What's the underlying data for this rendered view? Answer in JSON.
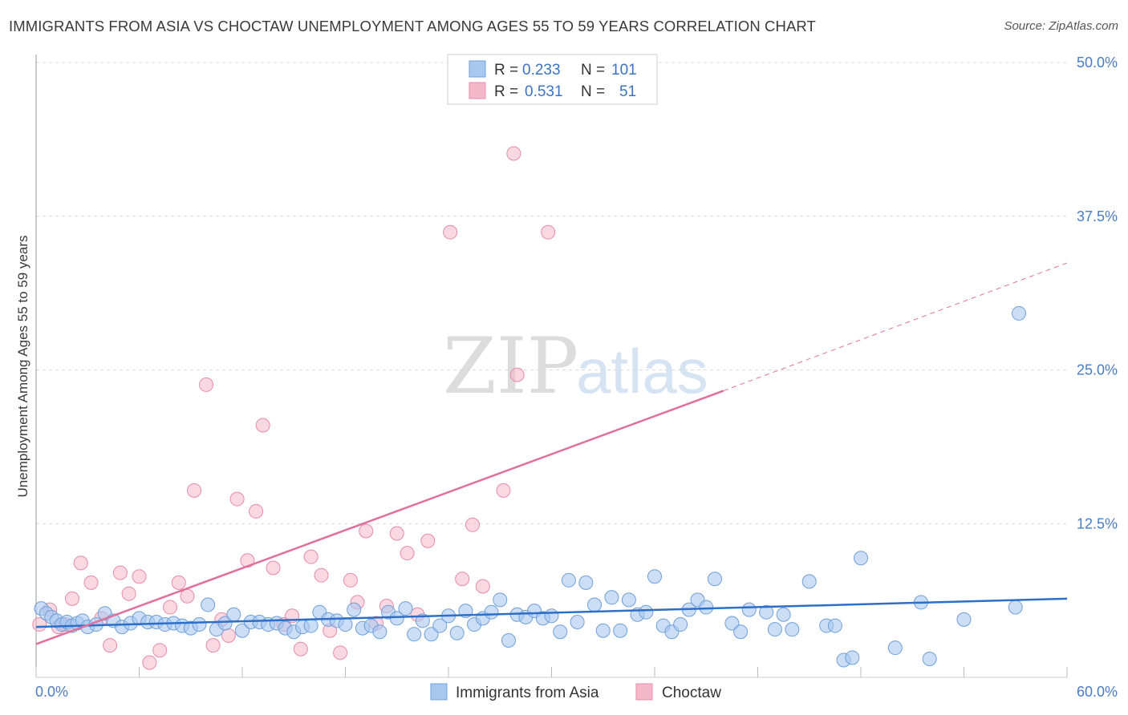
{
  "title": "IMMIGRANTS FROM ASIA VS CHOCTAW UNEMPLOYMENT AMONG AGES 55 TO 59 YEARS CORRELATION CHART",
  "source": "Source: ZipAtlas.com",
  "colors": {
    "series1_fill": "#a8c8f0",
    "series1_stroke": "#6f9fd8",
    "series1_line": "#2d6fc8",
    "series2_fill": "#f5b8cb",
    "series2_stroke": "#e88aa8",
    "series2_line": "#e0709a",
    "tick": "#4a7cc4",
    "grid": "#d9d9d9"
  },
  "legend": {
    "rows": [
      {
        "r_label": "R =",
        "r_value": "0.233",
        "n_label": "N =",
        "n_value": "101"
      },
      {
        "r_label": "R =",
        "r_value": "0.531",
        "n_label": "N =",
        "n_value": "51"
      }
    ]
  },
  "watermark": {
    "part1": "ZIP",
    "part2": "atlas"
  },
  "chart_data": {
    "type": "scatter",
    "xlabel": "",
    "ylabel": "Unemployment Among Ages 55 to 59 years",
    "xlim": [
      0,
      60
    ],
    "ylim": [
      0,
      50
    ],
    "x_tick_labels": [
      "0.0%",
      "60.0%"
    ],
    "y_ticks": [
      12.5,
      25.0,
      37.5,
      50.0
    ],
    "y_tick_labels": [
      "12.5%",
      "25.0%",
      "37.5%",
      "50.0%"
    ],
    "grid": true,
    "legend_position": "top-center",
    "series": [
      {
        "name": "Immigrants from Asia",
        "r": 0.233,
        "n": 101,
        "trend": {
          "x0": 0,
          "y0": 4.1,
          "x1": 60,
          "y1": 6.4
        },
        "points": [
          [
            0.3,
            5.6
          ],
          [
            0.6,
            5.2
          ],
          [
            0.9,
            4.9
          ],
          [
            1.2,
            4.6
          ],
          [
            1.5,
            4.3
          ],
          [
            1.8,
            4.5
          ],
          [
            2.1,
            4.2
          ],
          [
            2.4,
            4.4
          ],
          [
            2.7,
            4.6
          ],
          [
            3.0,
            4.1
          ],
          [
            3.5,
            4.3
          ],
          [
            4.0,
            5.2
          ],
          [
            4.5,
            4.6
          ],
          [
            5.0,
            4.1
          ],
          [
            5.5,
            4.4
          ],
          [
            6.0,
            4.8
          ],
          [
            6.5,
            4.5
          ],
          [
            7.0,
            4.5
          ],
          [
            7.5,
            4.3
          ],
          [
            8.0,
            4.4
          ],
          [
            8.5,
            4.2
          ],
          [
            9.0,
            4.0
          ],
          [
            9.5,
            4.3
          ],
          [
            10.0,
            5.9
          ],
          [
            10.5,
            3.9
          ],
          [
            11.0,
            4.4
          ],
          [
            11.5,
            5.1
          ],
          [
            12.0,
            3.8
          ],
          [
            12.5,
            4.5
          ],
          [
            13.0,
            4.5
          ],
          [
            13.5,
            4.3
          ],
          [
            14.0,
            4.4
          ],
          [
            14.5,
            4.0
          ],
          [
            15.0,
            3.7
          ],
          [
            15.5,
            4.1
          ],
          [
            16.0,
            4.2
          ],
          [
            16.5,
            5.3
          ],
          [
            17.0,
            4.7
          ],
          [
            17.5,
            4.6
          ],
          [
            18.0,
            4.3
          ],
          [
            18.5,
            5.5
          ],
          [
            19.0,
            4.0
          ],
          [
            19.5,
            4.2
          ],
          [
            20.0,
            3.7
          ],
          [
            20.5,
            5.3
          ],
          [
            21.0,
            4.8
          ],
          [
            21.5,
            5.6
          ],
          [
            22.0,
            3.5
          ],
          [
            22.5,
            4.6
          ],
          [
            23.0,
            3.5
          ],
          [
            23.5,
            4.2
          ],
          [
            24.0,
            5.0
          ],
          [
            24.5,
            3.6
          ],
          [
            25.0,
            5.4
          ],
          [
            25.5,
            4.3
          ],
          [
            26.0,
            4.8
          ],
          [
            26.5,
            5.3
          ],
          [
            27.0,
            6.3
          ],
          [
            27.5,
            3.0
          ],
          [
            28.0,
            5.1
          ],
          [
            28.5,
            4.9
          ],
          [
            29.0,
            5.4
          ],
          [
            29.5,
            4.8
          ],
          [
            30.0,
            5.0
          ],
          [
            30.5,
            3.7
          ],
          [
            31.0,
            7.9
          ],
          [
            31.5,
            4.5
          ],
          [
            32.0,
            7.7
          ],
          [
            32.5,
            5.9
          ],
          [
            33.0,
            3.8
          ],
          [
            33.5,
            6.5
          ],
          [
            34.0,
            3.8
          ],
          [
            34.5,
            6.3
          ],
          [
            35.0,
            5.1
          ],
          [
            35.5,
            5.3
          ],
          [
            36.0,
            8.2
          ],
          [
            36.5,
            4.2
          ],
          [
            37.0,
            3.7
          ],
          [
            37.5,
            4.3
          ],
          [
            38.0,
            5.5
          ],
          [
            38.5,
            6.3
          ],
          [
            39.0,
            5.7
          ],
          [
            39.5,
            8.0
          ],
          [
            40.5,
            4.4
          ],
          [
            41.0,
            3.7
          ],
          [
            41.5,
            5.5
          ],
          [
            42.5,
            5.3
          ],
          [
            43.0,
            3.9
          ],
          [
            43.5,
            5.1
          ],
          [
            44.0,
            3.9
          ],
          [
            45.0,
            7.8
          ],
          [
            46.0,
            4.2
          ],
          [
            46.5,
            4.2
          ],
          [
            47.0,
            1.4
          ],
          [
            47.5,
            1.6
          ],
          [
            48.0,
            9.7
          ],
          [
            50.0,
            2.4
          ],
          [
            51.5,
            6.1
          ],
          [
            52.0,
            1.5
          ],
          [
            54.0,
            4.7
          ],
          [
            57.0,
            5.7
          ],
          [
            57.2,
            29.6
          ]
        ]
      },
      {
        "name": "Choctaw",
        "r": 0.531,
        "n": 51,
        "trend": {
          "x0": 0,
          "y0": 2.7,
          "x1": 40,
          "y1": 23.3
        },
        "trend_dashed": {
          "x0": 40,
          "y0": 23.3,
          "x1": 60,
          "y1": 33.7
        },
        "points": [
          [
            0.2,
            4.3
          ],
          [
            0.8,
            5.5
          ],
          [
            1.3,
            4.1
          ],
          [
            1.7,
            4.3
          ],
          [
            2.1,
            6.4
          ],
          [
            2.6,
            9.3
          ],
          [
            3.2,
            7.7
          ],
          [
            3.8,
            4.8
          ],
          [
            4.3,
            2.6
          ],
          [
            4.9,
            8.5
          ],
          [
            5.4,
            6.8
          ],
          [
            6.0,
            8.2
          ],
          [
            6.6,
            1.2
          ],
          [
            7.2,
            2.2
          ],
          [
            7.8,
            5.7
          ],
          [
            8.3,
            7.7
          ],
          [
            8.8,
            6.6
          ],
          [
            9.2,
            15.2
          ],
          [
            9.9,
            23.8
          ],
          [
            10.3,
            2.6
          ],
          [
            10.8,
            4.7
          ],
          [
            11.2,
            3.4
          ],
          [
            11.7,
            14.5
          ],
          [
            12.3,
            9.5
          ],
          [
            12.8,
            13.5
          ],
          [
            13.2,
            20.5
          ],
          [
            13.8,
            8.9
          ],
          [
            14.4,
            4.3
          ],
          [
            14.9,
            5.0
          ],
          [
            15.4,
            2.3
          ],
          [
            16.0,
            9.8
          ],
          [
            16.6,
            8.3
          ],
          [
            17.1,
            3.8
          ],
          [
            17.7,
            2.0
          ],
          [
            18.3,
            7.9
          ],
          [
            18.7,
            6.1
          ],
          [
            19.2,
            11.9
          ],
          [
            19.8,
            4.4
          ],
          [
            20.4,
            5.8
          ],
          [
            21.0,
            11.7
          ],
          [
            21.6,
            10.1
          ],
          [
            22.2,
            5.1
          ],
          [
            22.8,
            11.1
          ],
          [
            24.1,
            36.2
          ],
          [
            24.8,
            8.0
          ],
          [
            25.4,
            12.4
          ],
          [
            26.0,
            7.4
          ],
          [
            27.2,
            15.2
          ],
          [
            27.8,
            42.6
          ],
          [
            28.0,
            24.6
          ],
          [
            29.8,
            36.2
          ]
        ]
      }
    ]
  },
  "bottom_legend": [
    "Immigrants from Asia",
    "Choctaw"
  ]
}
